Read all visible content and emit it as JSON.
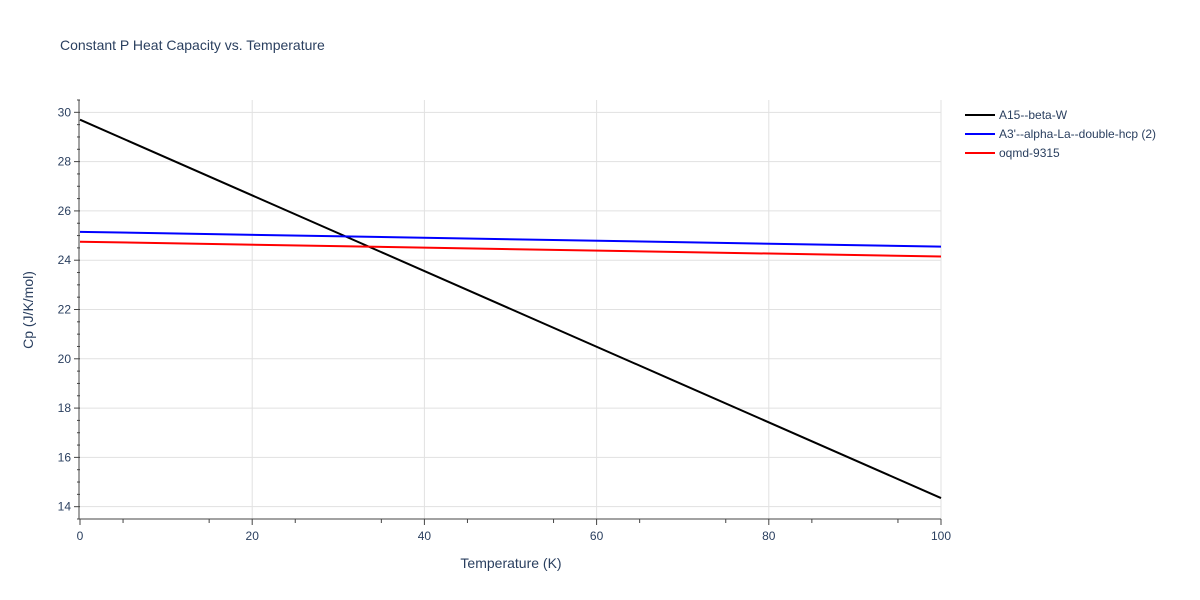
{
  "chart_data": {
    "type": "line",
    "title": "Constant P Heat Capacity vs. Temperature",
    "xlabel": "Temperature (K)",
    "ylabel": "Cp (J/K/mol)",
    "xlim": [
      0,
      100
    ],
    "ylim": [
      13.5,
      30.5
    ],
    "x_ticks": [
      0,
      20,
      40,
      60,
      80,
      100
    ],
    "y_ticks": [
      14,
      16,
      18,
      20,
      22,
      24,
      26,
      28,
      30
    ],
    "grid": true,
    "legend_position": "top-right, outside plot",
    "series": [
      {
        "name": "A15--beta-W",
        "color": "#000000",
        "x": [
          0,
          100
        ],
        "y": [
          29.7,
          14.35
        ]
      },
      {
        "name": "A3'--alpha-La--double-hcp (2)",
        "color": "#0000ff",
        "x": [
          0,
          100
        ],
        "y": [
          25.15,
          24.55
        ]
      },
      {
        "name": "oqmd-9315",
        "color": "#ff0000",
        "x": [
          0,
          100
        ],
        "y": [
          24.75,
          24.15
        ]
      }
    ]
  }
}
